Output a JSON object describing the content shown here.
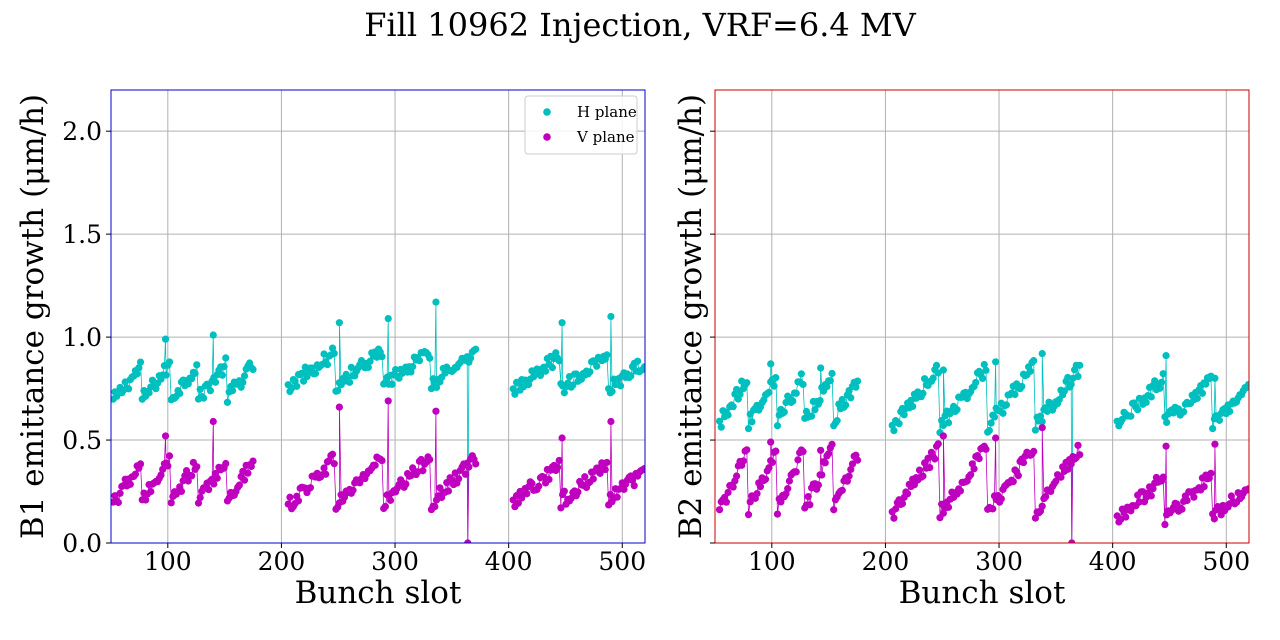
{
  "figure": {
    "title": "Fill 10962 Injection, VRF=6.4 MV"
  },
  "colors": {
    "h_plane": "#00bfbf",
    "v_plane": "#bf00bf",
    "b1_frame": "#0000cc",
    "b2_frame": "#cc0000",
    "grid": "#b0b0b0"
  },
  "chart_data": [
    {
      "type": "scatter",
      "beam": "B1",
      "xlabel": "Bunch slot",
      "ylabel": "B1 emittance growth (μm/h)",
      "xlim": [
        50,
        520
      ],
      "ylim": [
        0,
        2.2
      ],
      "xticks": [
        100,
        200,
        300,
        400,
        500
      ],
      "yticks": [
        0.0,
        0.5,
        1.0,
        1.5,
        2.0
      ],
      "ytick_labels": [
        "0.0",
        "0.5",
        "1.0",
        "1.5",
        "2.0"
      ],
      "grid": true,
      "legend": "top-right",
      "series": [
        {
          "name": "H plane",
          "color": "#00bfbf",
          "segments": [
            {
              "x_start": 52,
              "x_end": 176,
              "y_start": 0.69,
              "y_end": 0.86,
              "train_len": 25,
              "spikes": [
                [
                  98,
                  0.99
                ],
                [
                  140,
                  1.01
                ]
              ]
            },
            {
              "x_start": 206,
              "x_end": 372,
              "y_start": 0.76,
              "y_end": 0.93,
              "train_len": 42,
              "spikes": [
                [
                  251,
                  1.07
                ],
                [
                  294,
                  1.09
                ],
                [
                  336,
                  1.17
                ]
              ],
              "dips": [
                [
                  364,
                  0.0
                ]
              ]
            },
            {
              "x_start": 404,
              "x_end": 520,
              "y_start": 0.74,
              "y_end": 0.91,
              "train_len": 42,
              "spikes": [
                [
                  447,
                  1.07
                ],
                [
                  490,
                  1.1
                ]
              ]
            }
          ]
        },
        {
          "name": "V plane",
          "color": "#bf00bf",
          "segments": [
            {
              "x_start": 52,
              "x_end": 176,
              "y_start": 0.19,
              "y_end": 0.4,
              "train_len": 25,
              "spikes": [
                [
                  98,
                  0.52
                ],
                [
                  140,
                  0.59
                ]
              ]
            },
            {
              "x_start": 206,
              "x_end": 372,
              "y_start": 0.18,
              "y_end": 0.42,
              "train_len": 42,
              "spikes": [
                [
                  251,
                  0.66
                ],
                [
                  294,
                  0.69
                ],
                [
                  336,
                  0.64
                ]
              ],
              "dips": [
                [
                  364,
                  0.0
                ]
              ]
            },
            {
              "x_start": 404,
              "x_end": 520,
              "y_start": 0.2,
              "y_end": 0.38,
              "train_len": 42,
              "spikes": [
                [
                  447,
                  0.51
                ],
                [
                  490,
                  0.59
                ]
              ]
            }
          ]
        }
      ]
    },
    {
      "type": "scatter",
      "beam": "B2",
      "xlabel": "Bunch slot",
      "ylabel": "B2 emittance growth (μm/h)",
      "xlim": [
        50,
        520
      ],
      "ylim": [
        0,
        2.2
      ],
      "xticks": [
        100,
        200,
        300,
        400,
        500
      ],
      "yticks": [
        0.0,
        0.5,
        1.0,
        1.5,
        2.0
      ],
      "ytick_labels": [],
      "grid": true,
      "series": [
        {
          "name": "H plane",
          "color": "#00bfbf",
          "segments": [
            {
              "x_start": 54,
              "x_end": 176,
              "y_start": 0.58,
              "y_end": 0.81,
              "train_len": 25,
              "spikes": [
                [
                  99,
                  0.87
                ],
                [
                  143,
                  0.85
                ]
              ]
            },
            {
              "x_start": 206,
              "x_end": 372,
              "y_start": 0.56,
              "y_end": 0.86,
              "train_len": 42,
              "spikes": [
                [
                  251,
                  0.84
                ],
                [
                  297,
                  0.88
                ],
                [
                  338,
                  0.92
                ]
              ],
              "dips": [
                [
                  364,
                  0.0
                ]
              ]
            },
            {
              "x_start": 404,
              "x_end": 520,
              "y_start": 0.58,
              "y_end": 0.8,
              "train_len": 42,
              "spikes": [
                [
                  447,
                  0.91
                ],
                [
                  490,
                  0.8
                ]
              ]
            }
          ]
        },
        {
          "name": "V plane",
          "color": "#bf00bf",
          "segments": [
            {
              "x_start": 54,
              "x_end": 176,
              "y_start": 0.15,
              "y_end": 0.45,
              "train_len": 25,
              "spikes": [
                [
                  99,
                  0.49
                ],
                [
                  143,
                  0.45
                ]
              ]
            },
            {
              "x_start": 206,
              "x_end": 372,
              "y_start": 0.14,
              "y_end": 0.47,
              "train_len": 42,
              "spikes": [
                [
                  251,
                  0.52
                ],
                [
                  297,
                  0.51
                ],
                [
                  338,
                  0.56
                ]
              ],
              "dips": [
                [
                  364,
                  0.0
                ]
              ]
            },
            {
              "x_start": 404,
              "x_end": 520,
              "y_start": 0.12,
              "y_end": 0.32,
              "train_len": 42,
              "spikes": [
                [
                  447,
                  0.47
                ],
                [
                  490,
                  0.48
                ]
              ]
            }
          ]
        }
      ]
    }
  ]
}
